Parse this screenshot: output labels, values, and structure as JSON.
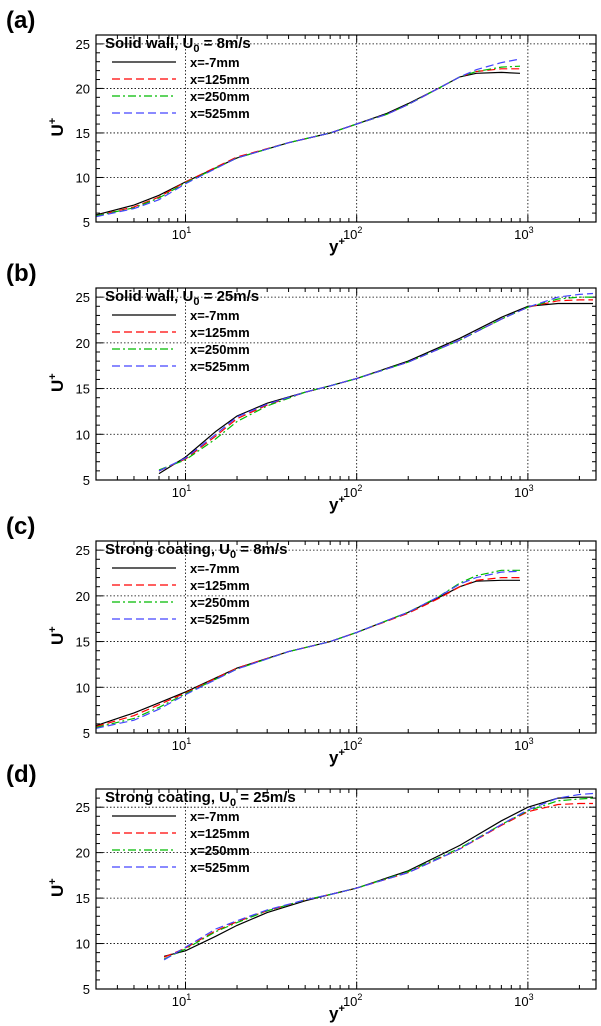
{
  "chart_data": [
    {
      "type": "line",
      "panel_label": "(a)",
      "title": "Solid wall, U",
      "title_sub": "0",
      "title_tail": " = 8m/s",
      "xlabel": "y",
      "xlabel_sup": "+",
      "ylabel": "U",
      "ylabel_sup": "+",
      "xscale": "log",
      "xlim": [
        3,
        2500
      ],
      "ylim": [
        5,
        26
      ],
      "yticks": [
        5,
        10,
        15,
        20,
        25
      ],
      "xticks": [
        {
          "base": "10",
          "exp": "1",
          "value": 10
        },
        {
          "base": "10",
          "exp": "2",
          "value": 100
        },
        {
          "base": "10",
          "exp": "3",
          "value": 1000
        }
      ],
      "grid": true,
      "legend_position": "top-left",
      "series": [
        {
          "name": "x=-7mm",
          "color": "#000000",
          "dash": "solid",
          "x": [
            3,
            5,
            7,
            10,
            20,
            40,
            70,
            100,
            150,
            200,
            300,
            400,
            500,
            700,
            900
          ],
          "y": [
            5.8,
            6.9,
            8.0,
            9.5,
            12.2,
            13.9,
            15.0,
            16.0,
            17.2,
            18.3,
            20.0,
            21.3,
            21.7,
            21.8,
            21.7
          ]
        },
        {
          "name": "x=125mm",
          "color": "#ff0000",
          "dash": "dashed",
          "x": [
            3,
            5,
            7,
            10,
            20,
            40,
            70,
            100,
            150,
            200,
            300,
            400,
            500,
            700,
            900
          ],
          "y": [
            5.7,
            6.7,
            7.8,
            9.5,
            12.3,
            13.9,
            15.0,
            16.0,
            17.1,
            18.2,
            20.0,
            21.3,
            21.9,
            22.2,
            22.2
          ]
        },
        {
          "name": "x=250mm",
          "color": "#00bb00",
          "dash": "dashdot",
          "x": [
            3,
            5,
            7,
            10,
            20,
            40,
            70,
            100,
            150,
            200,
            300,
            400,
            500,
            700,
            900
          ],
          "y": [
            5.7,
            6.6,
            7.7,
            9.4,
            12.2,
            13.9,
            15.0,
            16.0,
            17.1,
            18.2,
            20.0,
            21.3,
            21.9,
            22.4,
            22.5
          ]
        },
        {
          "name": "x=525mm",
          "color": "#4444ff",
          "dash": "dashed",
          "x": [
            3,
            5,
            7,
            10,
            20,
            40,
            70,
            100,
            150,
            200,
            300,
            400,
            500,
            700,
            900
          ],
          "y": [
            5.6,
            6.5,
            7.5,
            9.3,
            12.2,
            13.9,
            15.0,
            16.0,
            17.1,
            18.2,
            20.0,
            21.3,
            22.1,
            22.9,
            23.3
          ]
        }
      ]
    },
    {
      "type": "line",
      "panel_label": "(b)",
      "title": "Solid wall, U",
      "title_sub": "0",
      "title_tail": " = 25m/s",
      "xlabel": "y",
      "xlabel_sup": "+",
      "ylabel": "U",
      "ylabel_sup": "+",
      "xscale": "log",
      "xlim": [
        3,
        2500
      ],
      "ylim": [
        5,
        26
      ],
      "yticks": [
        5,
        10,
        15,
        20,
        25
      ],
      "xticks": [
        {
          "base": "10",
          "exp": "1",
          "value": 10
        },
        {
          "base": "10",
          "exp": "2",
          "value": 100
        },
        {
          "base": "10",
          "exp": "3",
          "value": 1000
        }
      ],
      "grid": true,
      "legend_position": "top-left",
      "series": [
        {
          "name": "x=-7mm",
          "color": "#000000",
          "dash": "solid",
          "x": [
            7,
            10,
            15,
            20,
            30,
            50,
            70,
            100,
            200,
            400,
            700,
            1000,
            1500,
            2000,
            2400
          ],
          "y": [
            5.7,
            7.5,
            10.3,
            12.0,
            13.4,
            14.6,
            15.3,
            16.1,
            18.0,
            20.5,
            22.8,
            24.0,
            24.3,
            24.3,
            24.3
          ]
        },
        {
          "name": "x=125mm",
          "color": "#ff0000",
          "dash": "dashed",
          "x": [
            7,
            10,
            15,
            20,
            30,
            50,
            70,
            100,
            200,
            400,
            700,
            1000,
            1500,
            2000,
            2400
          ],
          "y": [
            6.0,
            7.3,
            9.8,
            11.7,
            13.2,
            14.6,
            15.3,
            16.1,
            17.9,
            20.3,
            22.6,
            23.9,
            24.6,
            24.7,
            24.7
          ]
        },
        {
          "name": "x=250mm",
          "color": "#00bb00",
          "dash": "dashdot",
          "x": [
            7,
            10,
            15,
            20,
            30,
            50,
            70,
            100,
            200,
            400,
            700,
            1000,
            1500,
            2000,
            2400
          ],
          "y": [
            6.1,
            7.2,
            9.5,
            11.4,
            13.1,
            14.6,
            15.3,
            16.1,
            17.9,
            20.3,
            22.6,
            23.9,
            24.8,
            25.0,
            25.0
          ]
        },
        {
          "name": "x=525mm",
          "color": "#4444ff",
          "dash": "dashed",
          "x": [
            7,
            10,
            15,
            20,
            30,
            50,
            70,
            100,
            200,
            400,
            700,
            1000,
            1500,
            2000,
            2400
          ],
          "y": [
            6.0,
            7.4,
            10.0,
            11.9,
            13.3,
            14.6,
            15.3,
            16.1,
            17.9,
            20.3,
            22.6,
            23.9,
            25.0,
            25.3,
            25.4
          ]
        }
      ]
    },
    {
      "type": "line",
      "panel_label": "(c)",
      "title": "Strong coating, U",
      "title_sub": "0",
      "title_tail": " = 8m/s",
      "xlabel": "y",
      "xlabel_sup": "+",
      "ylabel": "U",
      "ylabel_sup": "+",
      "xscale": "log",
      "xlim": [
        3,
        2500
      ],
      "ylim": [
        5,
        26
      ],
      "yticks": [
        5,
        10,
        15,
        20,
        25
      ],
      "xticks": [
        {
          "base": "10",
          "exp": "1",
          "value": 10
        },
        {
          "base": "10",
          "exp": "2",
          "value": 100
        },
        {
          "base": "10",
          "exp": "3",
          "value": 1000
        }
      ],
      "grid": true,
      "legend_position": "top-left",
      "series": [
        {
          "name": "x=-7mm",
          "color": "#000000",
          "dash": "solid",
          "x": [
            3,
            5,
            7,
            10,
            20,
            40,
            70,
            100,
            200,
            300,
            400,
            500,
            700,
            900
          ],
          "y": [
            5.8,
            7.2,
            8.3,
            9.5,
            12.1,
            13.9,
            15.0,
            16.0,
            18.2,
            19.8,
            21.0,
            21.6,
            21.7,
            21.7
          ]
        },
        {
          "name": "x=125mm",
          "color": "#ff0000",
          "dash": "dashed",
          "x": [
            3,
            5,
            7,
            10,
            20,
            40,
            70,
            100,
            200,
            300,
            400,
            500,
            700,
            900
          ],
          "y": [
            5.7,
            6.9,
            8.1,
            9.4,
            12.1,
            13.9,
            15.0,
            16.0,
            18.1,
            19.7,
            21.0,
            21.7,
            22.0,
            22.0
          ]
        },
        {
          "name": "x=250mm",
          "color": "#00bb00",
          "dash": "dashdot",
          "x": [
            3,
            5,
            7,
            10,
            20,
            40,
            70,
            100,
            200,
            300,
            400,
            500,
            700,
            900
          ],
          "y": [
            5.6,
            6.6,
            7.8,
            9.3,
            12.0,
            13.9,
            15.0,
            16.0,
            18.2,
            19.9,
            21.4,
            22.2,
            22.8,
            22.8
          ]
        },
        {
          "name": "x=525mm",
          "color": "#4444ff",
          "dash": "dashed",
          "x": [
            3,
            5,
            7,
            10,
            20,
            40,
            70,
            100,
            200,
            300,
            400,
            500,
            700,
            900
          ],
          "y": [
            5.5,
            6.4,
            7.6,
            9.2,
            12.0,
            13.9,
            15.0,
            16.0,
            18.2,
            19.9,
            21.3,
            22.0,
            22.6,
            22.7
          ]
        }
      ]
    },
    {
      "type": "line",
      "panel_label": "(d)",
      "title": "Strong coating, U",
      "title_sub": "0",
      "title_tail": " = 25m/s",
      "xlabel": "y",
      "xlabel_sup": "+",
      "ylabel": "U",
      "ylabel_sup": "+",
      "xscale": "log",
      "xlim": [
        3,
        2500
      ],
      "ylim": [
        5,
        27
      ],
      "yticks": [
        5,
        10,
        15,
        20,
        25
      ],
      "xticks": [
        {
          "base": "10",
          "exp": "1",
          "value": 10
        },
        {
          "base": "10",
          "exp": "2",
          "value": 100
        },
        {
          "base": "10",
          "exp": "3",
          "value": 1000
        }
      ],
      "grid": true,
      "legend_position": "top-left",
      "series": [
        {
          "name": "x=-7mm",
          "color": "#000000",
          "dash": "solid",
          "x": [
            7.5,
            10,
            15,
            20,
            30,
            50,
            70,
            100,
            200,
            400,
            700,
            1000,
            1500,
            2000,
            2400
          ],
          "y": [
            8.6,
            9.2,
            10.8,
            12.0,
            13.4,
            14.7,
            15.4,
            16.1,
            18.0,
            20.8,
            23.5,
            25.0,
            26.0,
            26.1,
            26.1
          ]
        },
        {
          "name": "x=125mm",
          "color": "#ff0000",
          "dash": "dashed",
          "x": [
            7.5,
            10,
            15,
            20,
            30,
            50,
            70,
            100,
            200,
            400,
            700,
            1000,
            1500,
            2000,
            2400
          ],
          "y": [
            8.5,
            9.5,
            11.4,
            12.4,
            13.6,
            14.8,
            15.4,
            16.1,
            17.8,
            20.4,
            23.0,
            24.5,
            25.3,
            25.4,
            25.4
          ]
        },
        {
          "name": "x=250mm",
          "color": "#00bb00",
          "dash": "dashdot",
          "x": [
            7.5,
            10,
            15,
            20,
            30,
            50,
            70,
            100,
            200,
            400,
            700,
            1000,
            1500,
            2000,
            2400
          ],
          "y": [
            8.3,
            9.4,
            11.3,
            12.3,
            13.6,
            14.8,
            15.4,
            16.1,
            17.9,
            20.5,
            23.1,
            24.6,
            25.7,
            25.9,
            26.0
          ]
        },
        {
          "name": "x=525mm",
          "color": "#4444ff",
          "dash": "dashed",
          "x": [
            7.5,
            10,
            15,
            20,
            30,
            50,
            70,
            100,
            200,
            400,
            700,
            1000,
            1500,
            2000,
            2400
          ],
          "y": [
            8.2,
            9.6,
            11.6,
            12.5,
            13.7,
            14.8,
            15.4,
            16.1,
            17.8,
            20.4,
            23.1,
            24.7,
            26.0,
            26.4,
            26.5
          ]
        }
      ]
    }
  ]
}
